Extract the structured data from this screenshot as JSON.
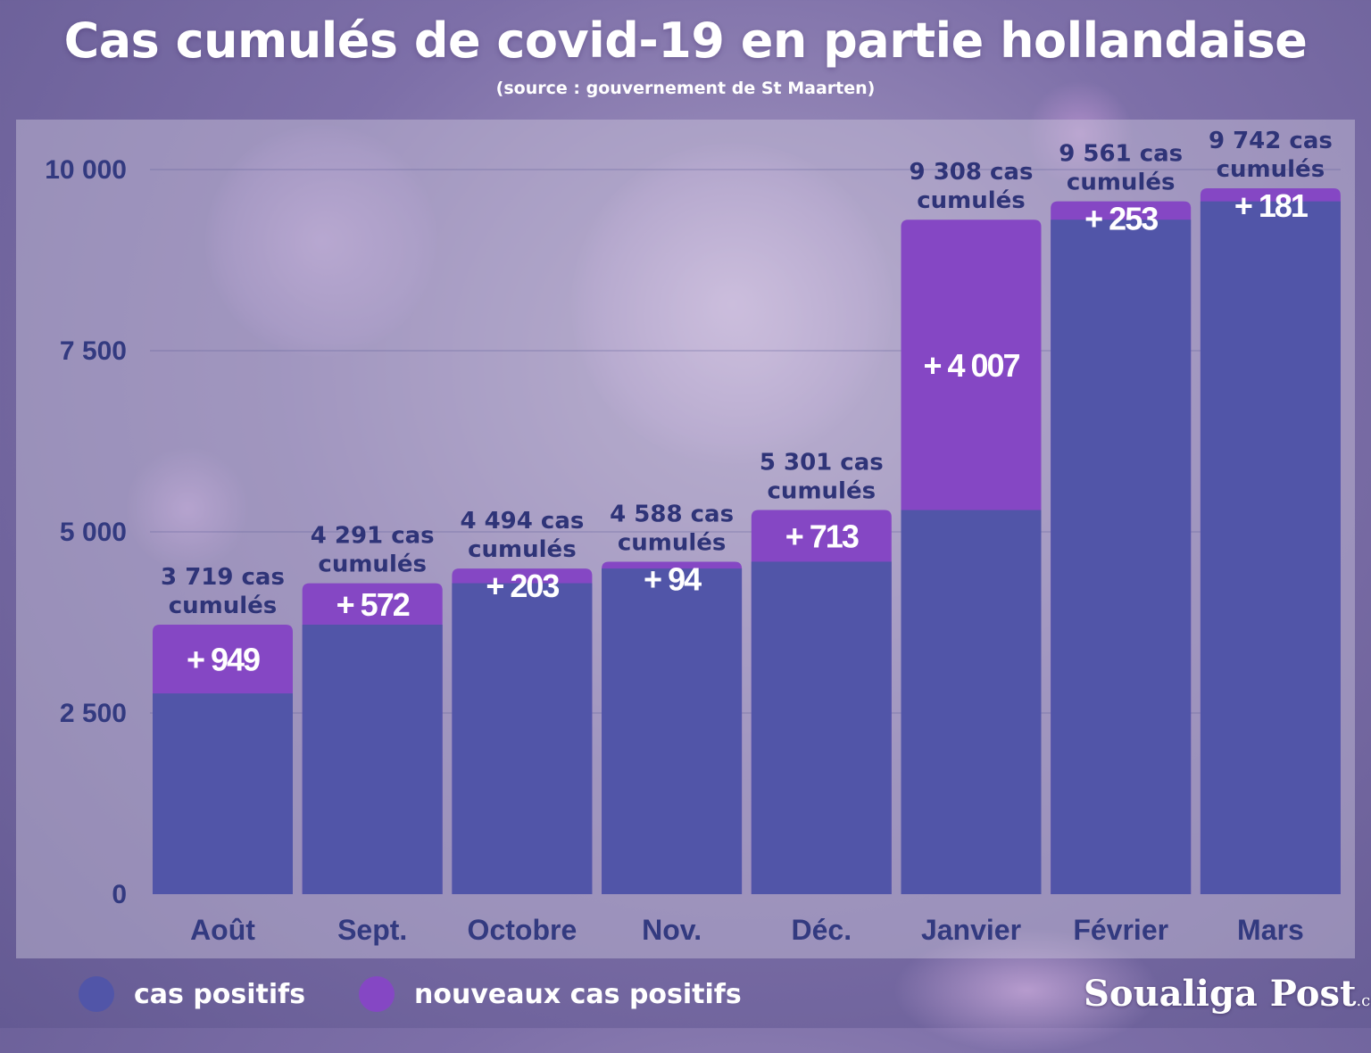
{
  "title": "Cas cumulés de covid-19 en partie hollandaise",
  "subtitle": "(source : gouvernement de St Maarten)",
  "colors": {
    "positifs": "#5155a8",
    "nouveaux": "#8547c4",
    "axis_text": "#333a80",
    "label_text": "#2f3478"
  },
  "chart_data": {
    "type": "bar",
    "stacked": true,
    "categories": [
      "Août",
      "Sept.",
      "Octobre",
      "Nov.",
      "Déc.",
      "Janvier",
      "Février",
      "Mars"
    ],
    "series": [
      {
        "name": "cas positifs",
        "values": [
          2770,
          3719,
          4291,
          4494,
          4588,
          5301,
          9308,
          9561
        ]
      },
      {
        "name": "nouveaux cas positifs",
        "values": [
          949,
          572,
          203,
          94,
          713,
          4007,
          253,
          181
        ]
      }
    ],
    "increase_labels": [
      "+ 949",
      "+ 572",
      "+ 203",
      "+ 94",
      "+ 713",
      "+ 4 007",
      "+ 253",
      "+ 181"
    ],
    "totals": [
      3719,
      4291,
      4494,
      4588,
      5301,
      9308,
      9561,
      9742
    ],
    "total_labels": [
      [
        "3 719 cas",
        "cumulés"
      ],
      [
        "4 291 cas",
        "cumulés"
      ],
      [
        "4 494 cas",
        "cumulés"
      ],
      [
        "4 588 cas",
        "cumulés"
      ],
      [
        "5 301 cas",
        "cumulés"
      ],
      [
        "9 308 cas",
        "cumulés"
      ],
      [
        "9 561 cas",
        "cumulés"
      ],
      [
        "9 742 cas",
        "cumulés"
      ]
    ],
    "yticks": [
      0,
      2500,
      5000,
      7500,
      10000
    ],
    "ytick_labels": [
      "0",
      "2 500",
      "5 000",
      "7 500",
      "10 000"
    ],
    "ylim": [
      0,
      10000
    ],
    "grid": true,
    "legend": "bottom-left"
  },
  "legend": {
    "positifs_label": "cas positifs",
    "nouveaux_label": "nouveaux cas positifs"
  },
  "brand": {
    "name": "Soualiga Post",
    "domain": ".com"
  }
}
